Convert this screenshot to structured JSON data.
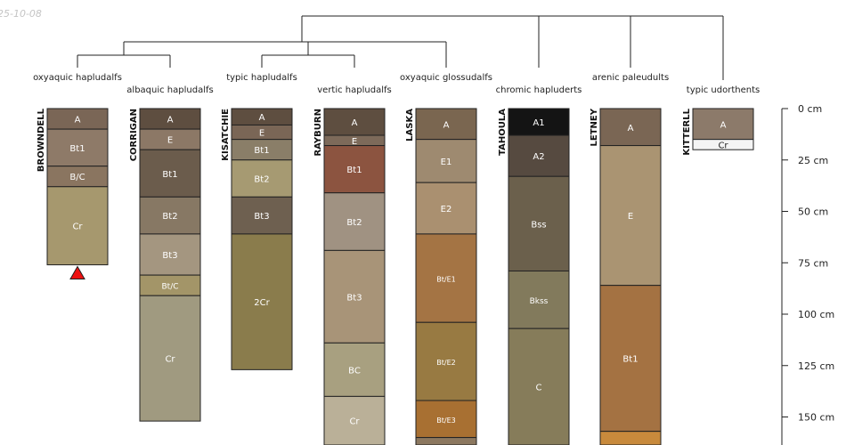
{
  "date_stamp": "25-10-08",
  "depth_axis": {
    "unit": "cm",
    "max": 165,
    "ticks": [
      {
        "value": 0,
        "label": "0 cm"
      },
      {
        "value": 25,
        "label": "25 cm"
      },
      {
        "value": 50,
        "label": "50 cm"
      },
      {
        "value": 75,
        "label": "75 cm"
      },
      {
        "value": 100,
        "label": "100 cm"
      },
      {
        "value": 125,
        "label": "125 cm"
      },
      {
        "value": 150,
        "label": "150 cm"
      }
    ]
  },
  "groups": [
    {
      "label": "oxyaquic hapludalfs"
    },
    {
      "label": "albaquic hapludalfs"
    },
    {
      "label": "typic hapludalfs"
    },
    {
      "label": "vertic hapludalfs"
    },
    {
      "label": "oxyaquic glossudalfs"
    },
    {
      "label": "chromic hapluderts"
    },
    {
      "label": "arenic paleudults"
    },
    {
      "label": "typic udorthents"
    }
  ],
  "profiles": [
    {
      "name": "BROWNDELL",
      "group": 0,
      "marker": "bottom-triangle",
      "horizons": [
        {
          "name": "A",
          "top": 0,
          "bottom": 10,
          "color": "#7a6656"
        },
        {
          "name": "Bt1",
          "top": 10,
          "bottom": 28,
          "color": "#8e7a68"
        },
        {
          "name": "B/C",
          "top": 28,
          "bottom": 38,
          "color": "#8a7560"
        },
        {
          "name": "Cr",
          "top": 38,
          "bottom": 76,
          "color": "#a6986e"
        }
      ]
    },
    {
      "name": "CORRIGAN",
      "group": 1,
      "horizons": [
        {
          "name": "A",
          "top": 0,
          "bottom": 10,
          "color": "#5e4e40"
        },
        {
          "name": "E",
          "top": 10,
          "bottom": 20,
          "color": "#8c7866"
        },
        {
          "name": "Bt1",
          "top": 20,
          "bottom": 43,
          "color": "#6b5c4c"
        },
        {
          "name": "Bt2",
          "top": 43,
          "bottom": 61,
          "color": "#877864"
        },
        {
          "name": "Bt3",
          "top": 61,
          "bottom": 81,
          "color": "#a49680"
        },
        {
          "name": "Bt/C",
          "top": 81,
          "bottom": 91,
          "color": "#a39568"
        },
        {
          "name": "Cr",
          "top": 91,
          "bottom": 152,
          "color": "#a09a80"
        }
      ]
    },
    {
      "name": "KISATCHIE",
      "group": 2,
      "horizons": [
        {
          "name": "A",
          "top": 0,
          "bottom": 8,
          "color": "#5e4e40"
        },
        {
          "name": "E",
          "top": 8,
          "bottom": 15,
          "color": "#7a6656"
        },
        {
          "name": "Bt1",
          "top": 15,
          "bottom": 25,
          "color": "#8a7e68"
        },
        {
          "name": "Bt2",
          "top": 25,
          "bottom": 43,
          "color": "#a69a72"
        },
        {
          "name": "Bt3",
          "top": 43,
          "bottom": 61,
          "color": "#6e6050"
        },
        {
          "name": "2Cr",
          "top": 61,
          "bottom": 127,
          "color": "#8a7c4c"
        }
      ]
    },
    {
      "name": "RAYBURN",
      "group": 3,
      "horizons": [
        {
          "name": "A",
          "top": 0,
          "bottom": 13,
          "color": "#5e4e40"
        },
        {
          "name": "E",
          "top": 13,
          "bottom": 18,
          "color": "#7d6a5a"
        },
        {
          "name": "Bt1",
          "top": 18,
          "bottom": 41,
          "color": "#8c5440"
        },
        {
          "name": "Bt2",
          "top": 41,
          "bottom": 69,
          "color": "#a09282"
        },
        {
          "name": "Bt3",
          "top": 69,
          "bottom": 114,
          "color": "#a89478"
        },
        {
          "name": "BC",
          "top": 114,
          "bottom": 140,
          "color": "#a8a080"
        },
        {
          "name": "Cr",
          "top": 140,
          "bottom": 165,
          "color": "#bab098"
        }
      ]
    },
    {
      "name": "LASKA",
      "group": 4,
      "horizons": [
        {
          "name": "A",
          "top": 0,
          "bottom": 15,
          "color": "#7a6650"
        },
        {
          "name": "E1",
          "top": 15,
          "bottom": 36,
          "color": "#9e8a70"
        },
        {
          "name": "E2",
          "top": 36,
          "bottom": 61,
          "color": "#aa9070"
        },
        {
          "name": "Bt/E1",
          "top": 61,
          "bottom": 104,
          "color": "#a47444"
        },
        {
          "name": "Bt/E2",
          "top": 104,
          "bottom": 142,
          "color": "#987a42"
        },
        {
          "name": "Bt/E3",
          "top": 142,
          "bottom": 160,
          "color": "#a87032"
        },
        {
          "name": "",
          "top": 160,
          "bottom": 165,
          "color": "#8c7860"
        }
      ]
    },
    {
      "name": "TAHOULA",
      "group": 5,
      "horizons": [
        {
          "name": "A1",
          "top": 0,
          "bottom": 13,
          "color": "#141414"
        },
        {
          "name": "A2",
          "top": 13,
          "bottom": 33,
          "color": "#564a40"
        },
        {
          "name": "Bss",
          "top": 33,
          "bottom": 79,
          "color": "#6b604c"
        },
        {
          "name": "Bkss",
          "top": 79,
          "bottom": 107,
          "color": "#827a5c"
        },
        {
          "name": "C",
          "top": 107,
          "bottom": 165,
          "color": "#867c5a"
        }
      ]
    },
    {
      "name": "LETNEY",
      "group": 6,
      "horizons": [
        {
          "name": "A",
          "top": 0,
          "bottom": 18,
          "color": "#7a6654"
        },
        {
          "name": "E",
          "top": 18,
          "bottom": 86,
          "color": "#aa9472"
        },
        {
          "name": "Bt1",
          "top": 86,
          "bottom": 157,
          "color": "#a47242"
        },
        {
          "name": "",
          "top": 157,
          "bottom": 165,
          "color": "#c88a3c"
        }
      ]
    },
    {
      "name": "KITTERLL",
      "group": 7,
      "horizons": [
        {
          "name": "A",
          "top": 0,
          "bottom": 15,
          "color": "#8c7a6a"
        },
        {
          "name": "Cr",
          "top": 15,
          "bottom": 20,
          "color": "#f4f4f4"
        }
      ]
    }
  ]
}
